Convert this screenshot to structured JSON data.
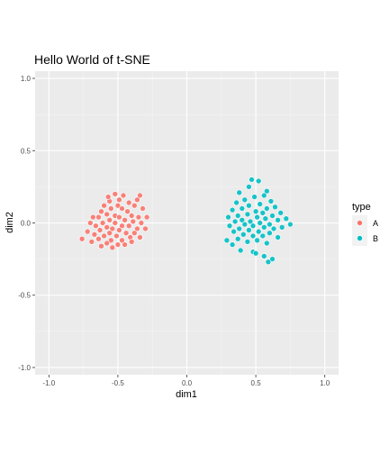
{
  "chart_data": {
    "type": "scatter",
    "title": "Hello World of t-SNE",
    "xlabel": "dim1",
    "ylabel": "dim2",
    "xlim": [
      -1.1,
      1.1
    ],
    "ylim": [
      -1.05,
      1.05
    ],
    "x_ticks": [
      -1.0,
      -0.5,
      0.0,
      0.5,
      1.0
    ],
    "x_tick_labels": [
      "-1.0",
      "-0.5",
      "0.0",
      "0.5",
      "1.0"
    ],
    "y_ticks": [
      -1.0,
      -0.5,
      0.0,
      0.5,
      1.0
    ],
    "y_tick_labels": [
      "-1.0",
      "-0.5",
      "0.0",
      "0.5",
      "1.0"
    ],
    "grid": true,
    "legend_title": "type",
    "legend_position": "right",
    "series": [
      {
        "name": "A",
        "color": "#F8766D",
        "points": [
          [
            -0.52,
            0.2
          ],
          [
            -0.46,
            0.19
          ],
          [
            -0.34,
            0.19
          ],
          [
            -0.36,
            0.16
          ],
          [
            -0.49,
            0.16
          ],
          [
            -0.56,
            0.15
          ],
          [
            -0.42,
            0.14
          ],
          [
            -0.6,
            0.12
          ],
          [
            -0.5,
            0.12
          ],
          [
            -0.38,
            0.12
          ],
          [
            -0.55,
            0.1
          ],
          [
            -0.47,
            0.1
          ],
          [
            -0.32,
            0.1
          ],
          [
            -0.62,
            0.08
          ],
          [
            -0.43,
            0.08
          ],
          [
            -0.58,
            0.06
          ],
          [
            -0.52,
            0.05
          ],
          [
            -0.4,
            0.05
          ],
          [
            -0.68,
            0.04
          ],
          [
            -0.64,
            0.04
          ],
          [
            -0.49,
            0.04
          ],
          [
            -0.35,
            0.04
          ],
          [
            -0.29,
            0.04
          ],
          [
            -0.56,
            0.02
          ],
          [
            -0.45,
            0.02
          ],
          [
            -0.39,
            0.01
          ],
          [
            -0.7,
            0.0
          ],
          [
            -0.61,
            0.0
          ],
          [
            -0.52,
            0.0
          ],
          [
            -0.33,
            0.0
          ],
          [
            -0.66,
            -0.02
          ],
          [
            -0.47,
            -0.02
          ],
          [
            -0.42,
            -0.02
          ],
          [
            -0.58,
            -0.03
          ],
          [
            -0.54,
            -0.04
          ],
          [
            -0.36,
            -0.04
          ],
          [
            -0.3,
            -0.04
          ],
          [
            -0.63,
            -0.05
          ],
          [
            -0.49,
            -0.05
          ],
          [
            -0.72,
            -0.06
          ],
          [
            -0.56,
            -0.07
          ],
          [
            -0.44,
            -0.07
          ],
          [
            -0.38,
            -0.07
          ],
          [
            -0.67,
            -0.08
          ],
          [
            -0.6,
            -0.09
          ],
          [
            -0.51,
            -0.09
          ],
          [
            -0.41,
            -0.1
          ],
          [
            -0.34,
            -0.1
          ],
          [
            -0.76,
            -0.11
          ],
          [
            -0.64,
            -0.11
          ],
          [
            -0.55,
            -0.12
          ],
          [
            -0.47,
            -0.12
          ],
          [
            -0.58,
            -0.14
          ],
          [
            -0.5,
            -0.15
          ],
          [
            -0.62,
            -0.16
          ],
          [
            -0.54,
            -0.17
          ],
          [
            -0.45,
            -0.15
          ],
          [
            -0.4,
            -0.13
          ],
          [
            -0.69,
            -0.13
          ],
          [
            -0.57,
            0.18
          ]
        ]
      },
      {
        "name": "B",
        "color": "#00BFC4",
        "points": [
          [
            0.47,
            0.3
          ],
          [
            0.52,
            0.29
          ],
          [
            0.45,
            0.25
          ],
          [
            0.58,
            0.22
          ],
          [
            0.38,
            0.21
          ],
          [
            0.56,
            0.19
          ],
          [
            0.49,
            0.18
          ],
          [
            0.42,
            0.16
          ],
          [
            0.61,
            0.15
          ],
          [
            0.36,
            0.14
          ],
          [
            0.53,
            0.13
          ],
          [
            0.45,
            0.12
          ],
          [
            0.64,
            0.11
          ],
          [
            0.58,
            0.1
          ],
          [
            0.4,
            0.1
          ],
          [
            0.33,
            0.09
          ],
          [
            0.5,
            0.08
          ],
          [
            0.68,
            0.07
          ],
          [
            0.55,
            0.07
          ],
          [
            0.44,
            0.06
          ],
          [
            0.62,
            0.05
          ],
          [
            0.37,
            0.05
          ],
          [
            0.3,
            0.04
          ],
          [
            0.51,
            0.04
          ],
          [
            0.57,
            0.03
          ],
          [
            0.72,
            0.03
          ],
          [
            0.4,
            0.02
          ],
          [
            0.66,
            0.02
          ],
          [
            0.46,
            0.01
          ],
          [
            0.35,
            0.01
          ],
          [
            0.53,
            0.0
          ],
          [
            0.6,
            -0.01
          ],
          [
            0.75,
            -0.01
          ],
          [
            0.42,
            -0.01
          ],
          [
            0.31,
            -0.02
          ],
          [
            0.48,
            -0.02
          ],
          [
            0.69,
            -0.03
          ],
          [
            0.56,
            -0.03
          ],
          [
            0.38,
            -0.04
          ],
          [
            0.63,
            -0.04
          ],
          [
            0.45,
            -0.05
          ],
          [
            0.52,
            -0.06
          ],
          [
            0.34,
            -0.06
          ],
          [
            0.6,
            -0.07
          ],
          [
            0.41,
            -0.08
          ],
          [
            0.55,
            -0.09
          ],
          [
            0.48,
            -0.09
          ],
          [
            0.66,
            -0.1
          ],
          [
            0.37,
            -0.11
          ],
          [
            0.29,
            -0.12
          ],
          [
            0.51,
            -0.12
          ],
          [
            0.44,
            -0.13
          ],
          [
            0.58,
            -0.14
          ],
          [
            0.33,
            -0.15
          ],
          [
            0.48,
            -0.2
          ],
          [
            0.5,
            -0.21
          ],
          [
            0.56,
            -0.23
          ],
          [
            0.62,
            -0.25
          ],
          [
            0.59,
            -0.27
          ],
          [
            0.39,
            -0.19
          ]
        ]
      }
    ]
  }
}
